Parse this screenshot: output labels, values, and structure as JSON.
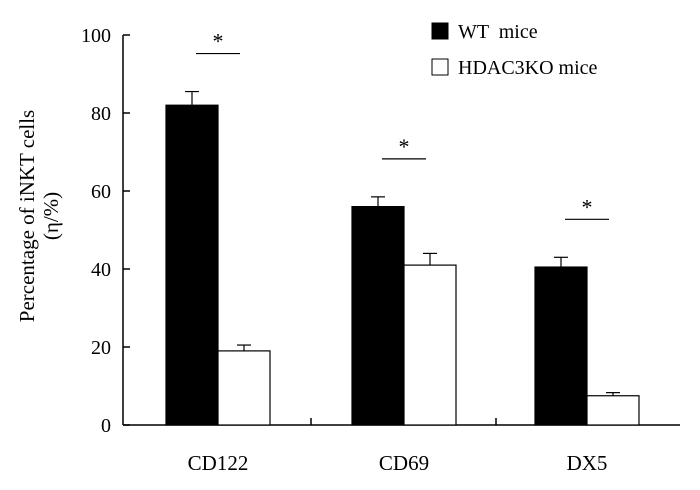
{
  "chart_data": {
    "type": "bar",
    "categories": [
      "CD122",
      "CD69",
      "DX5"
    ],
    "series": [
      {
        "name": "WT  mice",
        "values": [
          82,
          56,
          40.5
        ],
        "errors": [
          3.5,
          2.5,
          2.5
        ],
        "color": "#000000"
      },
      {
        "name": "HDAC3KO mice",
        "values": [
          19,
          41,
          7.5
        ],
        "errors": [
          1.5,
          3,
          0.8
        ],
        "color": "#ffffff"
      }
    ],
    "significance": [
      "*",
      "*",
      "*"
    ],
    "ylim": [
      0,
      100
    ],
    "yticks": [
      "0",
      "20",
      "40",
      "60",
      "80",
      "100"
    ],
    "ylabel_line1": "Percentage of iNKT cells",
    "ylabel_line2": "(η/%)",
    "xlabel": "",
    "title": "",
    "legend_position": "top-right",
    "grid": false
  }
}
